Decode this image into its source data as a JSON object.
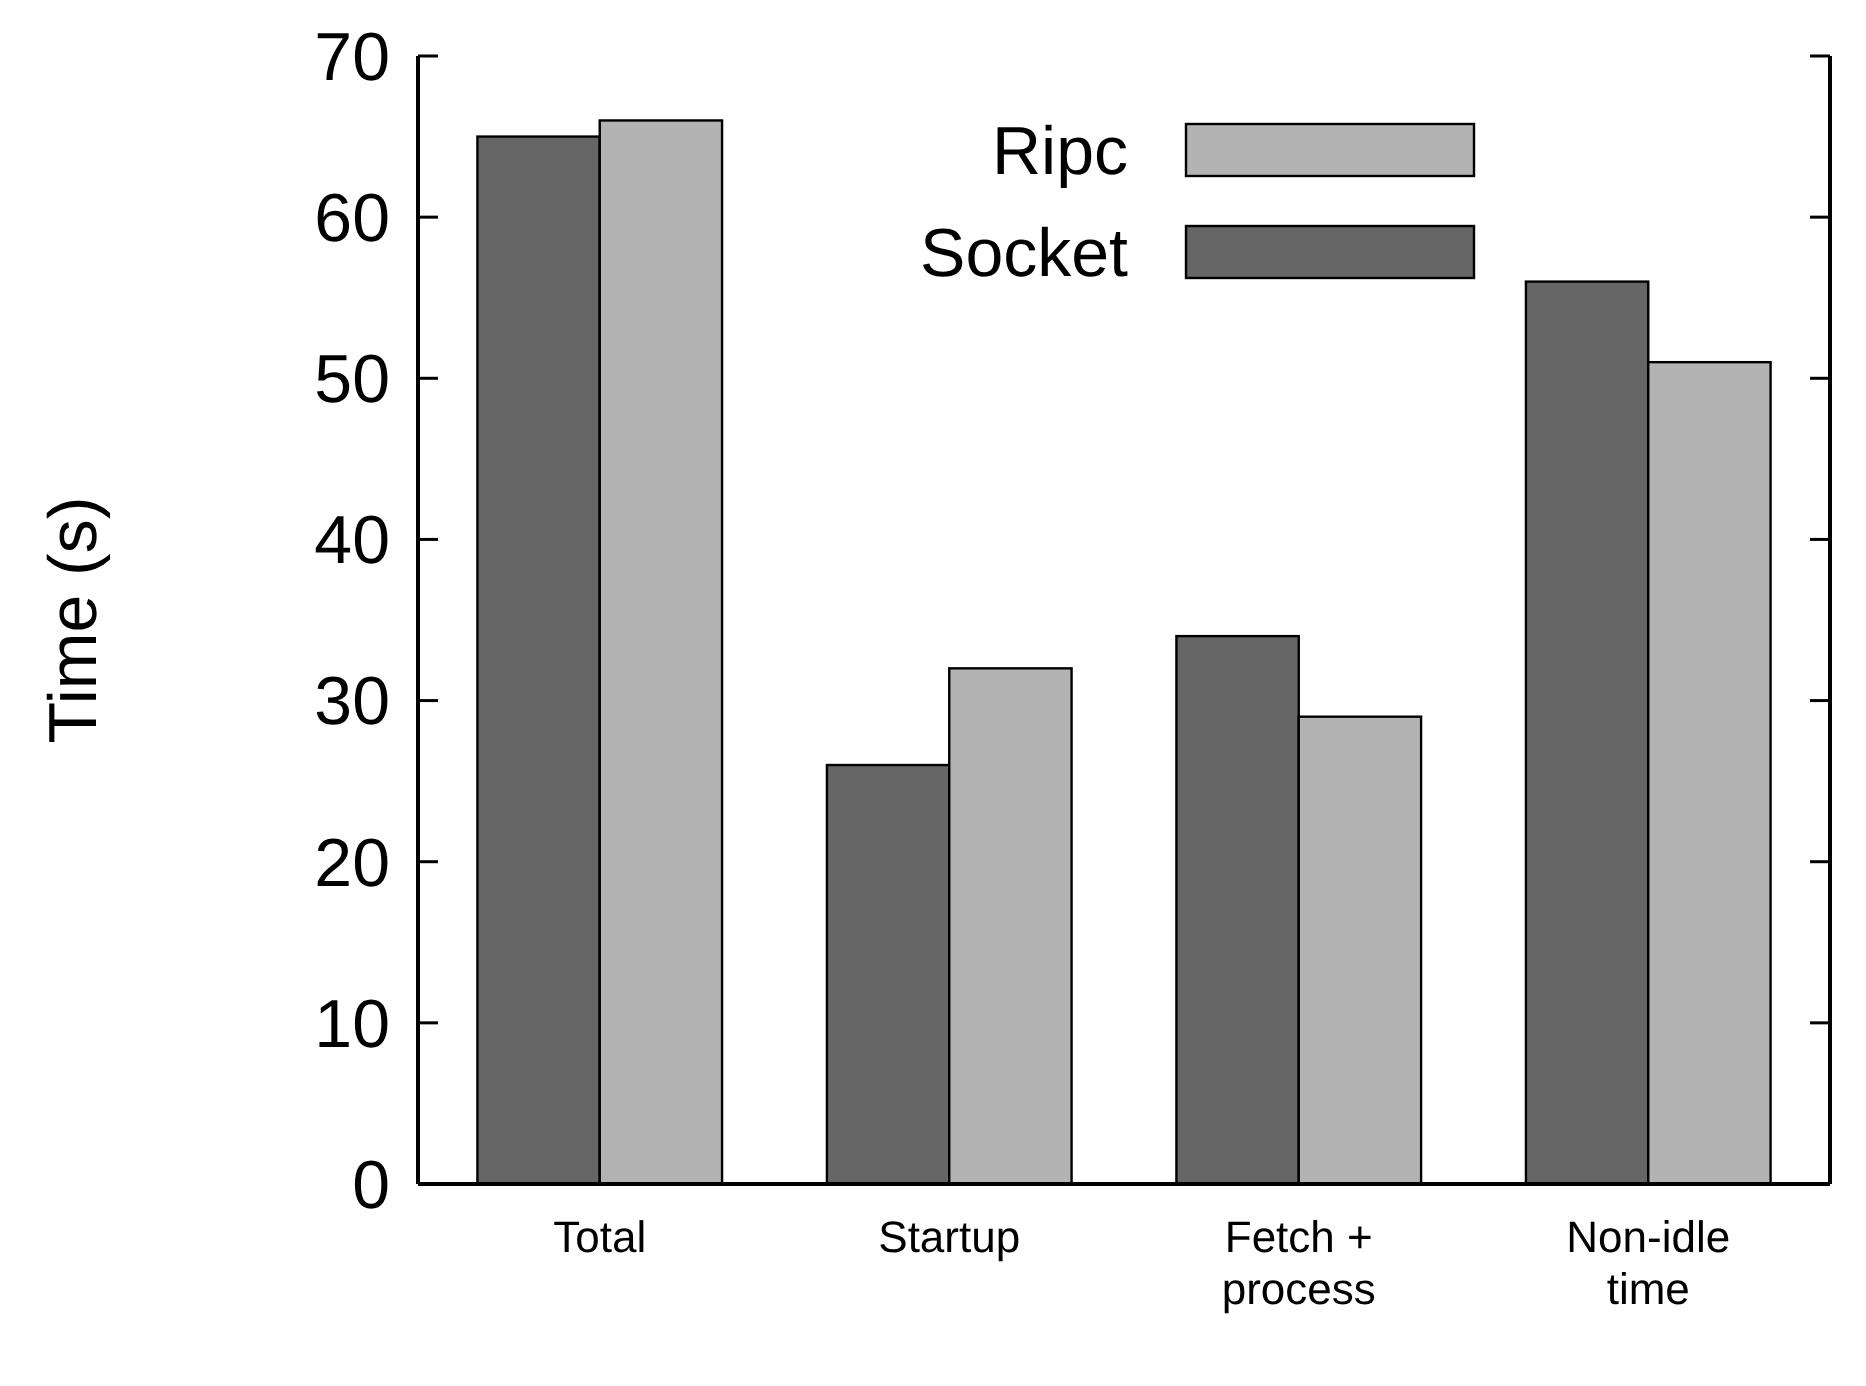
{
  "chart_data": {
    "type": "bar",
    "ylabel": "Time (s)",
    "categories": [
      "Total",
      "Startup",
      "Fetch + process",
      "Non-idle time"
    ],
    "series": [
      {
        "name": "Socket",
        "color": "#666666",
        "values": [
          65,
          26,
          34,
          56
        ]
      },
      {
        "name": "Ripc",
        "color": "#b3b3b3",
        "values": [
          66,
          32,
          29,
          51
        ]
      }
    ],
    "ylim": [
      0,
      70
    ],
    "yticks": [
      0,
      10,
      20,
      30,
      40,
      50,
      60,
      70
    ],
    "legend": "top",
    "grid": false
  }
}
